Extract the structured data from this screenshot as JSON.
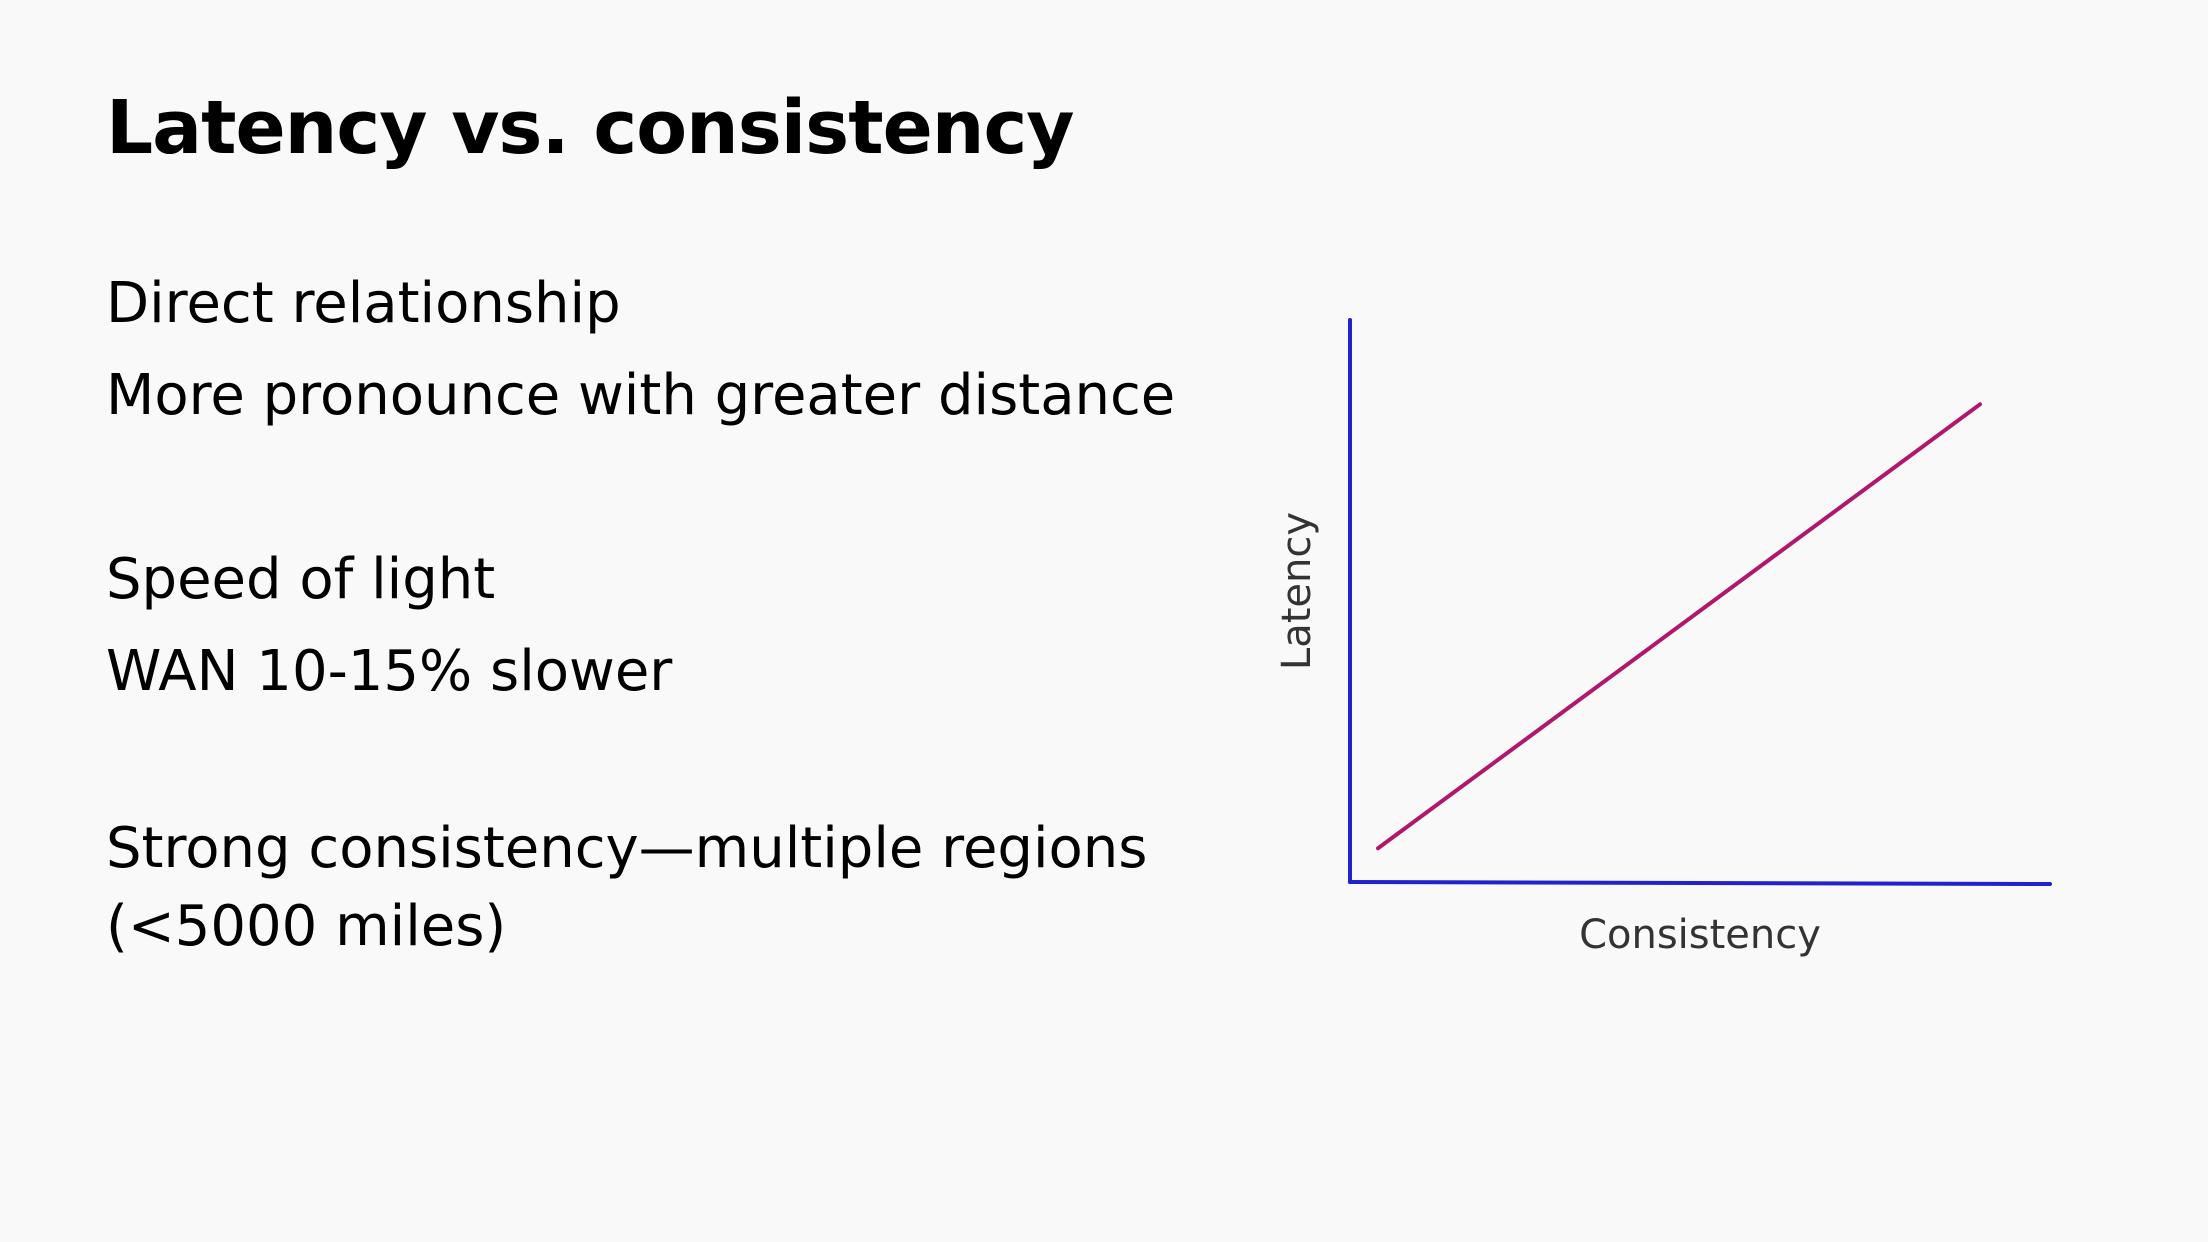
{
  "slide": {
    "title": "Latency vs. consistency",
    "groups": [
      {
        "lines": [
          "Direct relationship",
          "More pronounce with greater distance"
        ]
      },
      {
        "lines": [
          "Speed of light",
          "WAN 10-15% slower"
        ]
      },
      {
        "lines": [
          "Strong consistency—multiple regions (<5000 miles)"
        ]
      }
    ]
  },
  "chart_data": {
    "type": "line",
    "xlabel": "Consistency",
    "ylabel": "Latency",
    "axis_color": "#2222cc",
    "line_color": "#b0186e",
    "series": [
      {
        "x": [
          0.04,
          0.9
        ],
        "y": [
          0.06,
          0.85
        ]
      }
    ],
    "xlim": [
      0,
      1
    ],
    "ylim": [
      0,
      1
    ],
    "grid": false
  }
}
